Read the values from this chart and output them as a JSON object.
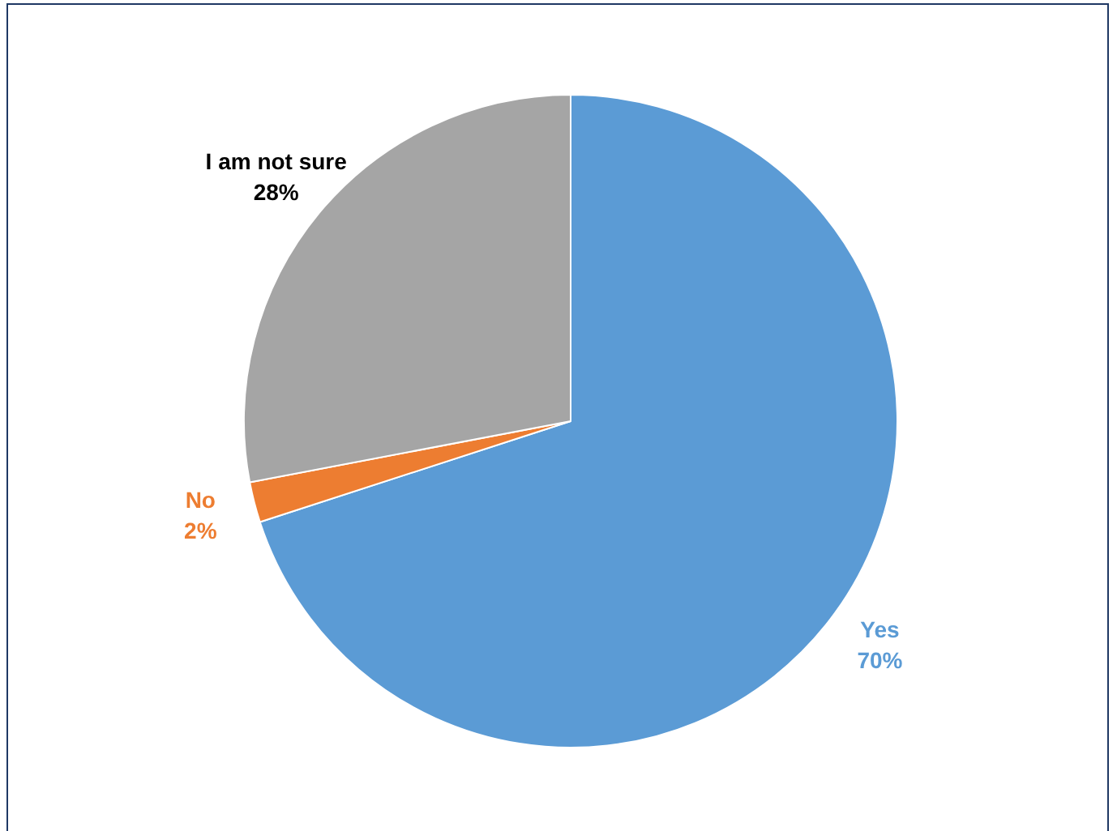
{
  "chart_data": {
    "type": "pie",
    "categories": [
      "Yes",
      "No",
      "I am not sure"
    ],
    "values": [
      70,
      2,
      28
    ],
    "value_labels": [
      "70%",
      "2%",
      "28%"
    ],
    "colors": [
      "#5b9bd5",
      "#ed7d31",
      "#a5a5a5"
    ],
    "legend": false
  }
}
